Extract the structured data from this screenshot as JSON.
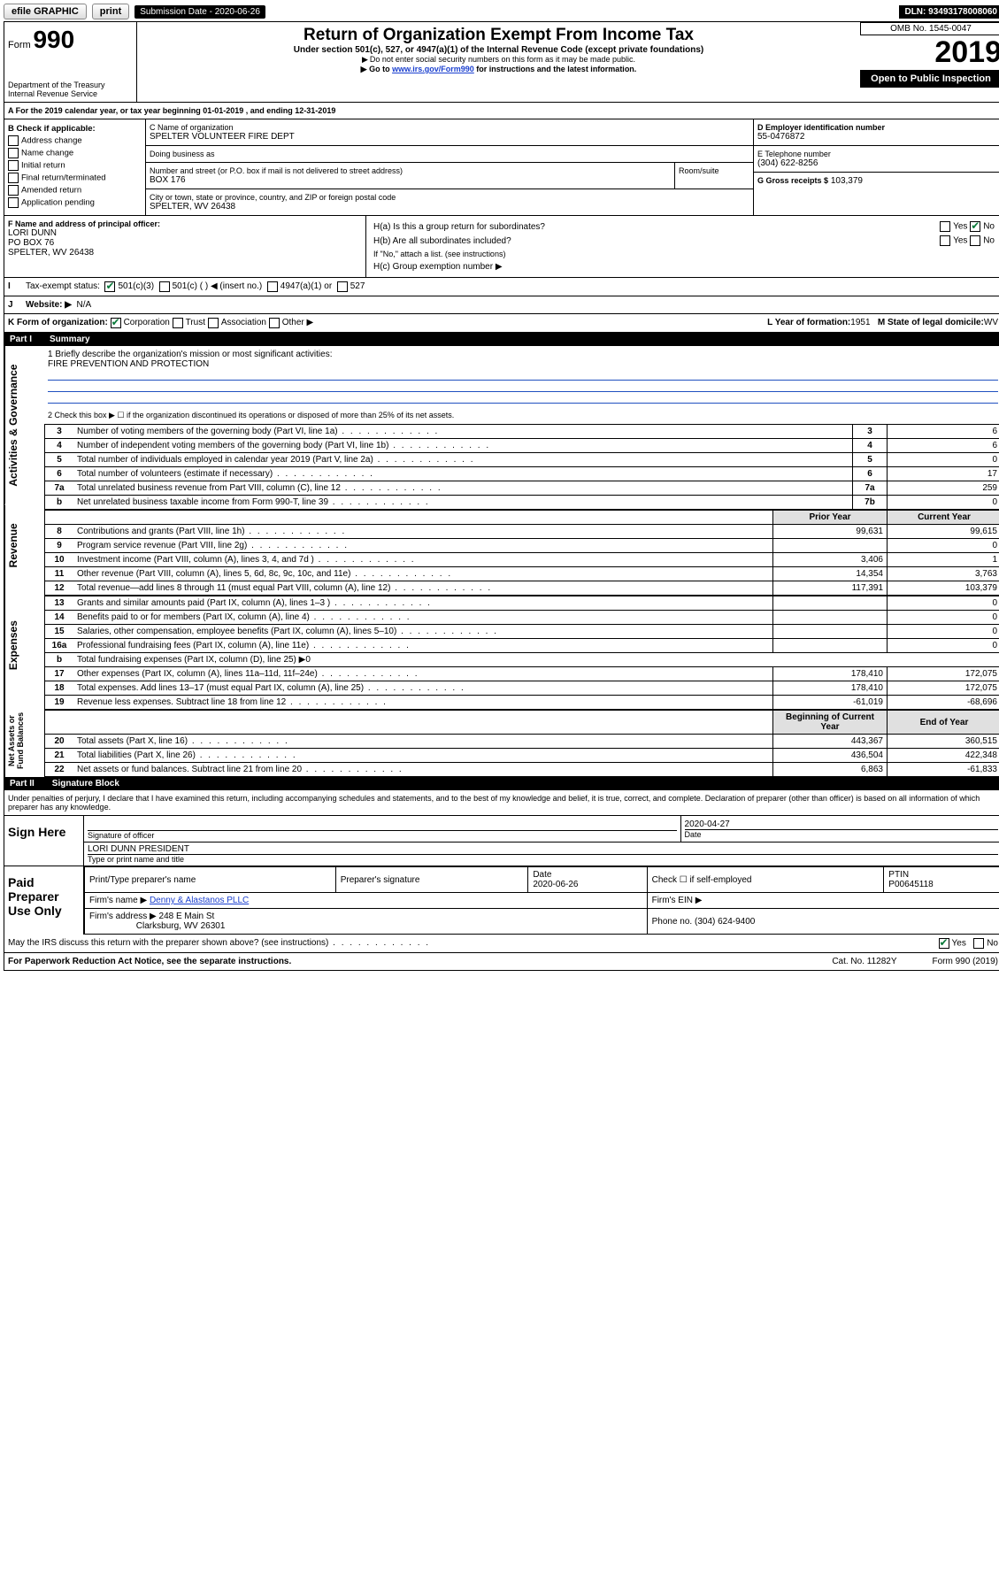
{
  "topbar": {
    "efile": "efile GRAPHIC",
    "print": "print",
    "sub_label": "Submission Date - 2020-06-26",
    "dln": "DLN: 93493178008060"
  },
  "header": {
    "form_prefix": "Form",
    "form_num": "990",
    "dept": "Department of the Treasury",
    "irs": "Internal Revenue Service",
    "title": "Return of Organization Exempt From Income Tax",
    "subtitle": "Under section 501(c), 527, or 4947(a)(1) of the Internal Revenue Code (except private foundations)",
    "note1": "Do not enter social security numbers on this form as it may be made public.",
    "note2_pre": "Go to ",
    "note2_link": "www.irs.gov/Form990",
    "note2_post": " for instructions and the latest information.",
    "omb": "OMB No. 1545-0047",
    "year": "2019",
    "open": "Open to Public Inspection"
  },
  "periodA": "For the 2019 calendar year, or tax year beginning 01-01-2019    , and ending 12-31-2019",
  "checkB": {
    "title": "B Check if applicable:",
    "items": [
      "Address change",
      "Name change",
      "Initial return",
      "Final return/terminated",
      "Amended return",
      "Application pending"
    ]
  },
  "blockC": {
    "label": "C Name of organization",
    "name": "SPELTER VOLUNTEER FIRE DEPT",
    "dba": "Doing business as",
    "street_label": "Number and street (or P.O. box if mail is not delivered to street address)",
    "room": "Room/suite",
    "street": "BOX 176",
    "city_label": "City or town, state or province, country, and ZIP or foreign postal code",
    "city": "SPELTER, WV  26438"
  },
  "blockD": {
    "label": "D Employer identification number",
    "value": "55-0476872"
  },
  "blockE": {
    "label": "E Telephone number",
    "value": "(304) 622-8256"
  },
  "blockG": {
    "label": "G Gross receipts $",
    "value": "103,379"
  },
  "blockF": {
    "label": "F  Name and address of principal officer:",
    "name": "LORI DUNN",
    "addr1": "PO BOX 76",
    "addr2": "SPELTER, WV  26438"
  },
  "blockH": {
    "ha": "H(a)  Is this a group return for subordinates?",
    "hb": "H(b)  Are all subordinates included?",
    "hb_note": "If \"No,\" attach a list. (see instructions)",
    "hc": "H(c)  Group exemption number ▶",
    "yes": "Yes",
    "no": "No"
  },
  "taxexempt": {
    "label": "Tax-exempt status:",
    "opt1": "501(c)(3)",
    "opt2": "501(c) (  ) ◀ (insert no.)",
    "opt3": "4947(a)(1) or",
    "opt4": "527"
  },
  "websiteJ": {
    "label": "Website: ▶",
    "value": "N/A"
  },
  "lineK": {
    "label": "K Form of organization:",
    "corp": "Corporation",
    "trust": "Trust",
    "assoc": "Association",
    "other": "Other ▶"
  },
  "lineL": {
    "label": "L Year of formation:",
    "value": "1951"
  },
  "lineM": {
    "label": "M State of legal domicile:",
    "value": "WV"
  },
  "part1": {
    "num": "Part I",
    "title": "Summary"
  },
  "summary": {
    "q1_label": "1  Briefly describe the organization's mission or most significant activities:",
    "q1_value": "FIRE PREVENTION AND PROTECTION",
    "q2": "2    Check this box ▶ ☐  if the organization discontinued its operations or disposed of more than 25% of its net assets.",
    "rows_top": [
      {
        "n": "3",
        "d": "Number of voting members of the governing body (Part VI, line 1a)",
        "b": "3",
        "v": "6"
      },
      {
        "n": "4",
        "d": "Number of independent voting members of the governing body (Part VI, line 1b)",
        "b": "4",
        "v": "6"
      },
      {
        "n": "5",
        "d": "Total number of individuals employed in calendar year 2019 (Part V, line 2a)",
        "b": "5",
        "v": "0"
      },
      {
        "n": "6",
        "d": "Total number of volunteers (estimate if necessary)",
        "b": "6",
        "v": "17"
      },
      {
        "n": "7a",
        "d": "Total unrelated business revenue from Part VIII, column (C), line 12",
        "b": "7a",
        "v": "259"
      },
      {
        "n": "b",
        "d": "Net unrelated business taxable income from Form 990-T, line 39",
        "b": "7b",
        "v": "0"
      }
    ],
    "col_prior": "Prior Year",
    "col_current": "Current Year",
    "rev": [
      {
        "n": "8",
        "d": "Contributions and grants (Part VIII, line 1h)",
        "p": "99,631",
        "c": "99,615"
      },
      {
        "n": "9",
        "d": "Program service revenue (Part VIII, line 2g)",
        "p": "",
        "c": "0"
      },
      {
        "n": "10",
        "d": "Investment income (Part VIII, column (A), lines 3, 4, and 7d )",
        "p": "3,406",
        "c": "1"
      },
      {
        "n": "11",
        "d": "Other revenue (Part VIII, column (A), lines 5, 6d, 8c, 9c, 10c, and 11e)",
        "p": "14,354",
        "c": "3,763"
      },
      {
        "n": "12",
        "d": "Total revenue—add lines 8 through 11 (must equal Part VIII, column (A), line 12)",
        "p": "117,391",
        "c": "103,379"
      }
    ],
    "exp": [
      {
        "n": "13",
        "d": "Grants and similar amounts paid (Part IX, column (A), lines 1–3 )",
        "p": "",
        "c": "0"
      },
      {
        "n": "14",
        "d": "Benefits paid to or for members (Part IX, column (A), line 4)",
        "p": "",
        "c": "0"
      },
      {
        "n": "15",
        "d": "Salaries, other compensation, employee benefits (Part IX, column (A), lines 5–10)",
        "p": "",
        "c": "0"
      },
      {
        "n": "16a",
        "d": "Professional fundraising fees (Part IX, column (A), line 11e)",
        "p": "",
        "c": "0"
      },
      {
        "n": "b",
        "d": "Total fundraising expenses (Part IX, column (D), line 25) ▶0",
        "p": null,
        "c": null
      },
      {
        "n": "17",
        "d": "Other expenses (Part IX, column (A), lines 11a–11d, 11f–24e)",
        "p": "178,410",
        "c": "172,075"
      },
      {
        "n": "18",
        "d": "Total expenses. Add lines 13–17 (must equal Part IX, column (A), line 25)",
        "p": "178,410",
        "c": "172,075"
      },
      {
        "n": "19",
        "d": "Revenue less expenses. Subtract line 18 from line 12",
        "p": "-61,019",
        "c": "-68,696"
      }
    ],
    "col_begin": "Beginning of Current Year",
    "col_end": "End of Year",
    "net": [
      {
        "n": "20",
        "d": "Total assets (Part X, line 16)",
        "p": "443,367",
        "c": "360,515"
      },
      {
        "n": "21",
        "d": "Total liabilities (Part X, line 26)",
        "p": "436,504",
        "c": "422,348"
      },
      {
        "n": "22",
        "d": "Net assets or fund balances. Subtract line 21 from line 20",
        "p": "6,863",
        "c": "-61,833"
      }
    ],
    "vlabels": [
      "Activities & Governance",
      "Revenue",
      "Expenses",
      "Net Assets or Fund Balances"
    ]
  },
  "part2": {
    "num": "Part II",
    "title": "Signature Block"
  },
  "penalties": "Under penalties of perjury, I declare that I have examined this return, including accompanying schedules and statements, and to the best of my knowledge and belief, it is true, correct, and complete. Declaration of preparer (other than officer) is based on all information of which preparer has any knowledge.",
  "sign": {
    "here": "Sign Here",
    "sig_officer": "Signature of officer",
    "date": "2020-04-27",
    "date_label": "Date",
    "name": "LORI DUNN  PRESIDENT",
    "name_label": "Type or print name and title"
  },
  "paid": {
    "label": "Paid Preparer Use Only",
    "h_name": "Print/Type preparer's name",
    "h_sig": "Preparer's signature",
    "h_date": "Date",
    "date": "2020-06-26",
    "check": "Check ☐ if self-employed",
    "ptin_label": "PTIN",
    "ptin": "P00645118",
    "firm_name_label": "Firm's name     ▶",
    "firm_name": "Denny & Alastanos PLLC",
    "firm_ein": "Firm's EIN ▶",
    "firm_addr_label": "Firm's address ▶",
    "firm_addr1": "248 E Main St",
    "firm_addr2": "Clarksburg, WV  26301",
    "phone_label": "Phone no.",
    "phone": "(304) 624-9400"
  },
  "footer": {
    "discuss": "May the IRS discuss this return with the preparer shown above? (see instructions)",
    "yes": "Yes",
    "no": "No",
    "pra": "For Paperwork Reduction Act Notice, see the separate instructions.",
    "cat": "Cat. No. 11282Y",
    "form": "Form 990 (2019)"
  },
  "colors": {
    "link": "#1a3fcf",
    "blueline": "#2050c0",
    "green": "#0a7a3a"
  }
}
